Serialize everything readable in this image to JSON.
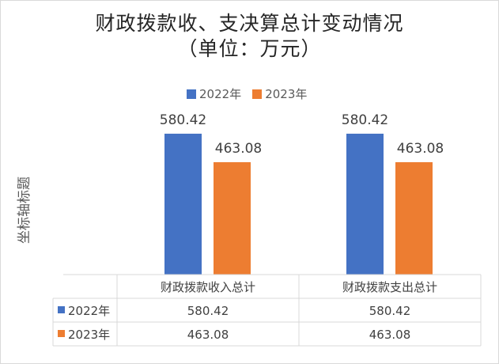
{
  "chart_data": {
    "type": "bar",
    "title_lines": [
      "财政拨款收、支决算总计变动情况",
      "（单位：万元）"
    ],
    "ylabel": "坐标轴标题",
    "categories": [
      "财政拨款收入总计",
      "财政拨款支出总计"
    ],
    "series": [
      {
        "name": "2022年",
        "values": [
          580.42,
          580.42
        ],
        "color": "#4472C4"
      },
      {
        "name": "2023年",
        "values": [
          463.08,
          463.08
        ],
        "color": "#ED7D31"
      }
    ],
    "data_table": true,
    "legend_position": "top"
  }
}
